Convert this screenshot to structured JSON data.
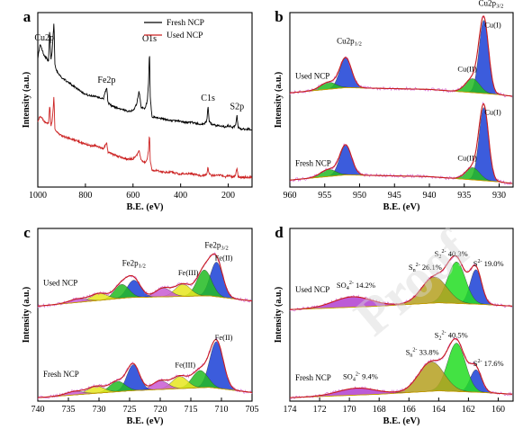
{
  "chart_data": [
    {
      "panel": "a",
      "type": "line",
      "xlabel": "B.E. (eV)",
      "ylabel": "Intensity (a.u.)",
      "xlim": [
        1000,
        100
      ],
      "xticks": [
        "1000",
        "800",
        "600",
        "400",
        "200"
      ],
      "legend": {
        "placement": "top-right",
        "entries": [
          {
            "name": "Fresh NCP",
            "color": "#000000"
          },
          {
            "name": "Used NCP",
            "color": "#cc2222"
          }
        ]
      },
      "annotations": [
        {
          "text": "Cu2p",
          "x": 935
        },
        {
          "text": "Fe2p",
          "x": 711
        },
        {
          "text": "O1s",
          "x": 531
        },
        {
          "text": "C1s",
          "x": 285
        },
        {
          "text": "S2p",
          "x": 163
        }
      ],
      "series": [
        {
          "name": "Fresh NCP",
          "color": "#000000",
          "x": [
            1000,
            990,
            975,
            955,
            950,
            945,
            940,
            932,
            928,
            920,
            900,
            880,
            860,
            840,
            820,
            800,
            780,
            760,
            740,
            725,
            718,
            711,
            705,
            690,
            670,
            650,
            630,
            600,
            585,
            575,
            565,
            550,
            540,
            535,
            531,
            528,
            520,
            500,
            470,
            440,
            410,
            380,
            350,
            320,
            300,
            290,
            285,
            280,
            270,
            250,
            230,
            210,
            200,
            180,
            170,
            163,
            158,
            150,
            130,
            110,
            100
          ],
          "y": [
            0.78,
            0.86,
            0.8,
            0.76,
            0.95,
            0.76,
            0.82,
            1.0,
            0.74,
            0.7,
            0.66,
            0.64,
            0.62,
            0.6,
            0.58,
            0.56,
            0.55,
            0.55,
            0.54,
            0.53,
            0.57,
            0.6,
            0.51,
            0.49,
            0.48,
            0.47,
            0.46,
            0.46,
            0.5,
            0.58,
            0.48,
            0.47,
            0.52,
            0.62,
            0.83,
            0.55,
            0.42,
            0.42,
            0.41,
            0.4,
            0.4,
            0.39,
            0.39,
            0.38,
            0.38,
            0.4,
            0.49,
            0.4,
            0.38,
            0.37,
            0.37,
            0.36,
            0.37,
            0.36,
            0.37,
            0.43,
            0.36,
            0.35,
            0.35,
            0.35,
            0.34
          ]
        },
        {
          "name": "Used NCP",
          "color": "#cc2222",
          "x": [
            1000,
            990,
            975,
            955,
            950,
            945,
            940,
            932,
            928,
            920,
            900,
            880,
            860,
            840,
            820,
            800,
            780,
            760,
            740,
            725,
            718,
            711,
            705,
            690,
            670,
            650,
            630,
            600,
            585,
            575,
            565,
            550,
            540,
            535,
            531,
            528,
            520,
            500,
            470,
            440,
            410,
            380,
            350,
            320,
            300,
            290,
            285,
            280,
            270,
            250,
            230,
            210,
            200,
            180,
            170,
            163,
            158,
            150,
            130,
            110,
            100
          ],
          "y": [
            0.4,
            0.43,
            0.4,
            0.38,
            0.5,
            0.37,
            0.39,
            0.55,
            0.35,
            0.33,
            0.31,
            0.3,
            0.29,
            0.28,
            0.27,
            0.26,
            0.25,
            0.25,
            0.24,
            0.23,
            0.25,
            0.27,
            0.21,
            0.2,
            0.19,
            0.18,
            0.17,
            0.17,
            0.19,
            0.22,
            0.16,
            0.15,
            0.17,
            0.22,
            0.33,
            0.16,
            0.1,
            0.1,
            0.09,
            0.09,
            0.08,
            0.08,
            0.08,
            0.07,
            0.07,
            0.08,
            0.12,
            0.08,
            0.07,
            0.07,
            0.07,
            0.06,
            0.07,
            0.06,
            0.07,
            0.11,
            0.06,
            0.06,
            0.06,
            0.06,
            0.06
          ]
        }
      ]
    },
    {
      "panel": "b",
      "type": "line",
      "xlabel": "B.E. (eV)",
      "ylabel": "Intensity (a.u.)",
      "xlim": [
        960,
        928
      ],
      "xticks": [
        "960",
        "955",
        "950",
        "945",
        "940",
        "935",
        "930"
      ],
      "samples": [
        {
          "name": "Used NCP",
          "offset": 0.52,
          "bg": {
            "x": [
              960,
              952,
              940,
              930,
              928
            ],
            "y": [
              0.02,
              0.05,
              0.04,
              0.01,
              0.0
            ]
          },
          "peaks": [
            {
              "label": "Cu(I)",
              "center": 932.2,
              "height": 0.42,
              "fwhm": 1.6,
              "color": "#1a3fd6"
            },
            {
              "label": "Cu(II)",
              "center": 933.8,
              "height": 0.08,
              "fwhm": 2.4,
              "color": "#22bb22"
            },
            {
              "label": "",
              "center": 952.0,
              "height": 0.17,
              "fwhm": 2.0,
              "color": "#1a3fd6"
            },
            {
              "label": "",
              "center": 954.5,
              "height": 0.04,
              "fwhm": 2.6,
              "color": "#22bb22"
            }
          ]
        },
        {
          "name": "Fresh NCP",
          "offset": 0.02,
          "bg": {
            "x": [
              960,
              952,
              940,
              930,
              928
            ],
            "y": [
              0.02,
              0.05,
              0.04,
              0.01,
              0.0
            ]
          },
          "peaks": [
            {
              "label": "Cu(I)",
              "center": 932.2,
              "height": 0.42,
              "fwhm": 1.6,
              "color": "#1a3fd6"
            },
            {
              "label": "Cu(II)",
              "center": 933.8,
              "height": 0.07,
              "fwhm": 2.4,
              "color": "#22bb22"
            },
            {
              "label": "",
              "center": 952.0,
              "height": 0.17,
              "fwhm": 2.0,
              "color": "#1a3fd6"
            },
            {
              "label": "",
              "center": 954.5,
              "height": 0.04,
              "fwhm": 2.6,
              "color": "#22bb22"
            }
          ]
        }
      ],
      "annotations": [
        {
          "text": "Cu2p",
          "sub": "1/2"
        },
        {
          "text": "Cu2p",
          "sub": "3/2"
        }
      ]
    },
    {
      "panel": "c",
      "type": "line",
      "xlabel": "B.E. (eV)",
      "ylabel": "Intensity (a.u.)",
      "xlim": [
        740,
        705
      ],
      "xticks": [
        "740",
        "735",
        "730",
        "725",
        "720",
        "715",
        "710",
        "705"
      ],
      "samples": [
        {
          "name": "Used NCP",
          "offset": 0.55,
          "bg": {
            "x": [
              740,
              725,
              712,
              705
            ],
            "y": [
              0.0,
              0.05,
              0.06,
              0.03
            ]
          },
          "peaks": [
            {
              "label": "Fe(II)",
              "center": 710.8,
              "height": 0.2,
              "fwhm": 2.4,
              "color": "#1a3fd6"
            },
            {
              "label": "",
              "center": 712.8,
              "height": 0.15,
              "fwhm": 2.8,
              "color": "#22bb22"
            },
            {
              "label": "Fe(III)",
              "center": 716.3,
              "height": 0.07,
              "fwhm": 3.0,
              "color": "#e6e61e"
            },
            {
              "label": "",
              "center": 719.5,
              "height": 0.05,
              "fwhm": 3.0,
              "color": "#c85ad2"
            },
            {
              "label": "",
              "center": 724.3,
              "height": 0.1,
              "fwhm": 2.6,
              "color": "#1a3fd6"
            },
            {
              "label": "",
              "center": 726.3,
              "height": 0.08,
              "fwhm": 2.8,
              "color": "#22bb22"
            },
            {
              "label": "",
              "center": 730.0,
              "height": 0.04,
              "fwhm": 3.2,
              "color": "#e6e61e"
            },
            {
              "label": "",
              "center": 733.5,
              "height": 0.02,
              "fwhm": 3.4,
              "color": "#c85ad2"
            }
          ]
        },
        {
          "name": "Fresh NCP",
          "offset": 0.02,
          "bg": {
            "x": [
              740,
              725,
              712,
              705
            ],
            "y": [
              0.0,
              0.04,
              0.06,
              0.03
            ]
          },
          "peaks": [
            {
              "label": "Fe(II)",
              "center": 710.8,
              "height": 0.27,
              "fwhm": 2.6,
              "color": "#1a3fd6"
            },
            {
              "label": "",
              "center": 713.5,
              "height": 0.1,
              "fwhm": 3.0,
              "color": "#22bb22"
            },
            {
              "label": "Fe(III)",
              "center": 716.8,
              "height": 0.07,
              "fwhm": 3.0,
              "color": "#e6e61e"
            },
            {
              "label": "",
              "center": 720.0,
              "height": 0.05,
              "fwhm": 3.0,
              "color": "#c85ad2"
            },
            {
              "label": "",
              "center": 724.4,
              "height": 0.15,
              "fwhm": 2.4,
              "color": "#1a3fd6"
            },
            {
              "label": "",
              "center": 727.0,
              "height": 0.06,
              "fwhm": 3.0,
              "color": "#22bb22"
            },
            {
              "label": "",
              "center": 730.5,
              "height": 0.04,
              "fwhm": 3.2,
              "color": "#e6e61e"
            },
            {
              "label": "",
              "center": 734.0,
              "height": 0.02,
              "fwhm": 3.4,
              "color": "#c85ad2"
            }
          ]
        }
      ],
      "annotations": [
        {
          "text": "Fe2p",
          "sub": "1/2"
        },
        {
          "text": "Fe2p",
          "sub": "3/2"
        }
      ]
    },
    {
      "panel": "d",
      "type": "line",
      "xlabel": "B.E. (eV)",
      "ylabel": "Intensity (a.u.)",
      "xlim": [
        174,
        159
      ],
      "xticks": [
        "174",
        "172",
        "170",
        "168",
        "166",
        "164",
        "162",
        "160"
      ],
      "samples": [
        {
          "name": "Used NCP",
          "offset": 0.53,
          "bg": {
            "x": [
              174,
              168,
              164,
              161,
              159
            ],
            "y": [
              0.0,
              0.02,
              0.04,
              0.03,
              0.02
            ]
          },
          "peaks": [
            {
              "label": "S",
              "sup": "2-",
              "pct": "19.0%",
              "center": 161.5,
              "height": 0.2,
              "fwhm": 0.9,
              "color": "#1a3fd6"
            },
            {
              "label": "S",
              "sub": "2",
              "sup": "2-",
              "pct": "40.3%",
              "center": 162.8,
              "height": 0.24,
              "fwhm": 1.4,
              "color": "#22dd22"
            },
            {
              "label": "S",
              "sub": "n",
              "sup": "2-",
              "pct": "26.1%",
              "center": 164.3,
              "height": 0.15,
              "fwhm": 2.0,
              "color": "#b5a020"
            },
            {
              "label": "SO",
              "sub": "4",
              "sup": "2-",
              "pct": "14.2%",
              "center": 169.8,
              "height": 0.06,
              "fwhm": 3.0,
              "color": "#b040d0"
            }
          ]
        },
        {
          "name": "Fresh NCP",
          "offset": 0.02,
          "bg": {
            "x": [
              174,
              168,
              164,
              161,
              159
            ],
            "y": [
              0.0,
              0.02,
              0.04,
              0.03,
              0.02
            ]
          },
          "peaks": [
            {
              "label": "S",
              "sup": "2-",
              "pct": "17.6%",
              "center": 161.5,
              "height": 0.13,
              "fwhm": 0.9,
              "color": "#1a3fd6"
            },
            {
              "label": "S",
              "sub": "2",
              "sup": "2-",
              "pct": "40.5%",
              "center": 162.8,
              "height": 0.28,
              "fwhm": 1.4,
              "color": "#22dd22"
            },
            {
              "label": "S",
              "sub": "n",
              "sup": "2-",
              "pct": "33.8%",
              "center": 164.5,
              "height": 0.17,
              "fwhm": 2.0,
              "color": "#b5a020"
            },
            {
              "label": "SO",
              "sub": "4",
              "sup": "2-",
              "pct": "9.4%",
              "center": 169.5,
              "height": 0.04,
              "fwhm": 3.0,
              "color": "#b040d0"
            }
          ]
        }
      ]
    }
  ],
  "panel_letters": [
    "a",
    "b",
    "c",
    "d"
  ],
  "watermark": {
    "text": "Proof",
    "color": "#d8d8d8"
  },
  "colors": {
    "axis": "#000000",
    "envelope": "#c81e1e",
    "raw": "#d050d0"
  }
}
